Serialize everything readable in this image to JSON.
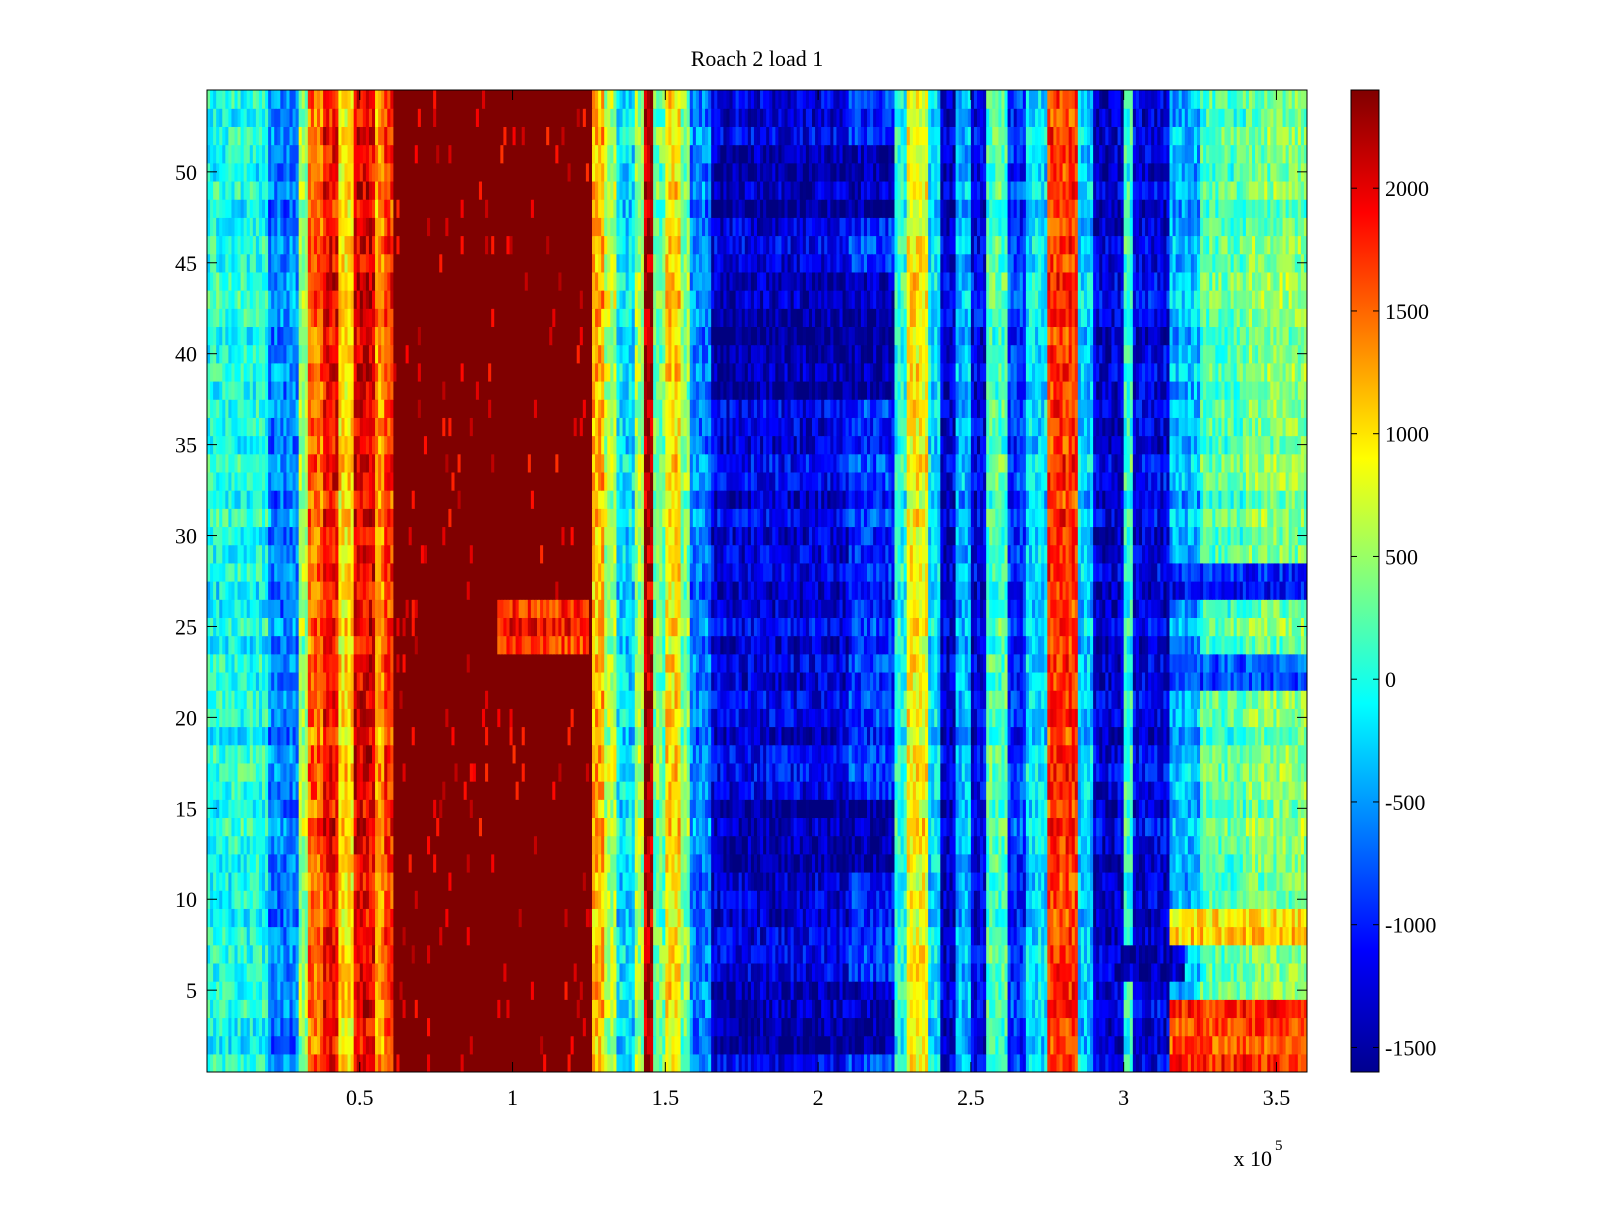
{
  "chart_data": {
    "type": "heatmap",
    "title": "Roach 2 load 1",
    "xlabel": "",
    "ylabel": "",
    "x_exponent_label": "x 10",
    "x_exponent_power": "5",
    "xlim": [
      0,
      360000
    ],
    "ylim": [
      0.5,
      54.5
    ],
    "n_rows": 54,
    "x_ticks": [
      {
        "value": 50000,
        "label": "0.5"
      },
      {
        "value": 100000,
        "label": "1"
      },
      {
        "value": 150000,
        "label": "1.5"
      },
      {
        "value": 200000,
        "label": "2"
      },
      {
        "value": 250000,
        "label": "2.5"
      },
      {
        "value": 300000,
        "label": "3"
      },
      {
        "value": 350000,
        "label": "3.5"
      }
    ],
    "y_ticks": [
      {
        "value": 5,
        "label": "5"
      },
      {
        "value": 10,
        "label": "10"
      },
      {
        "value": 15,
        "label": "15"
      },
      {
        "value": 20,
        "label": "20"
      },
      {
        "value": 25,
        "label": "25"
      },
      {
        "value": 30,
        "label": "30"
      },
      {
        "value": 35,
        "label": "35"
      },
      {
        "value": 40,
        "label": "40"
      },
      {
        "value": 45,
        "label": "45"
      },
      {
        "value": 50,
        "label": "50"
      }
    ],
    "colorbar": {
      "colormap": "jet",
      "clim": [
        -1600,
        2400
      ],
      "ticks": [
        {
          "value": -1500,
          "label": "-1500"
        },
        {
          "value": -1000,
          "label": "-1000"
        },
        {
          "value": -500,
          "label": "-500"
        },
        {
          "value": 0,
          "label": "0"
        },
        {
          "value": 500,
          "label": "500"
        },
        {
          "value": 1000,
          "label": "1000"
        },
        {
          "value": 1500,
          "label": "1500"
        },
        {
          "value": 2000,
          "label": "2000"
        }
      ]
    },
    "column_profile": [
      {
        "x0": 0,
        "x1": 20000,
        "value": 0
      },
      {
        "x0": 20000,
        "x1": 30000,
        "value": -600
      },
      {
        "x0": 30000,
        "x1": 33000,
        "value": 500
      },
      {
        "x0": 33000,
        "x1": 38000,
        "value": 1500
      },
      {
        "x0": 38000,
        "x1": 43000,
        "value": 1900
      },
      {
        "x0": 43000,
        "x1": 48000,
        "value": 1000
      },
      {
        "x0": 48000,
        "x1": 55000,
        "value": 2000
      },
      {
        "x0": 55000,
        "x1": 58000,
        "value": 1300
      },
      {
        "x0": 58000,
        "x1": 61000,
        "value": 1700
      },
      {
        "x0": 61000,
        "x1": 126000,
        "value": 2400
      },
      {
        "x0": 126000,
        "x1": 130000,
        "value": 1200
      },
      {
        "x0": 130000,
        "x1": 134000,
        "value": 600
      },
      {
        "x0": 134000,
        "x1": 140000,
        "value": -200
      },
      {
        "x0": 140000,
        "x1": 143000,
        "value": 500
      },
      {
        "x0": 143000,
        "x1": 146000,
        "value": 2200
      },
      {
        "x0": 146000,
        "x1": 150000,
        "value": 300
      },
      {
        "x0": 150000,
        "x1": 155000,
        "value": 1000
      },
      {
        "x0": 155000,
        "x1": 158000,
        "value": 400
      },
      {
        "x0": 158000,
        "x1": 165000,
        "value": -600
      },
      {
        "x0": 165000,
        "x1": 210000,
        "value": -1200
      },
      {
        "x0": 210000,
        "x1": 225000,
        "value": -900
      },
      {
        "x0": 225000,
        "x1": 229000,
        "value": 0
      },
      {
        "x0": 229000,
        "x1": 236000,
        "value": 900
      },
      {
        "x0": 236000,
        "x1": 240000,
        "value": -200
      },
      {
        "x0": 240000,
        "x1": 245000,
        "value": -1300
      },
      {
        "x0": 245000,
        "x1": 250000,
        "value": -400
      },
      {
        "x0": 250000,
        "x1": 255000,
        "value": -1200
      },
      {
        "x0": 255000,
        "x1": 262000,
        "value": 200
      },
      {
        "x0": 262000,
        "x1": 268000,
        "value": -900
      },
      {
        "x0": 268000,
        "x1": 275000,
        "value": -200
      },
      {
        "x0": 275000,
        "x1": 285000,
        "value": 1700
      },
      {
        "x0": 285000,
        "x1": 290000,
        "value": -300
      },
      {
        "x0": 290000,
        "x1": 300000,
        "value": -1300
      },
      {
        "x0": 300000,
        "x1": 303000,
        "value": 100
      },
      {
        "x0": 303000,
        "x1": 315000,
        "value": -1200
      },
      {
        "x0": 315000,
        "x1": 325000,
        "value": -400
      },
      {
        "x0": 325000,
        "x1": 340000,
        "value": 200
      },
      {
        "x0": 340000,
        "x1": 360000,
        "value": 400
      }
    ],
    "row_features": [
      {
        "rows": [
          1,
          4
        ],
        "x0": 315000,
        "x1": 360000,
        "value": 1700,
        "note": "warm band"
      },
      {
        "rows": [
          8,
          9
        ],
        "x0": 315000,
        "x1": 360000,
        "value": 1100,
        "note": "warm band"
      },
      {
        "rows": [
          6,
          7
        ],
        "x0": 300000,
        "x1": 320000,
        "value": -1400,
        "note": "cold patch"
      },
      {
        "rows": [
          22,
          23
        ],
        "x0": 315000,
        "x1": 360000,
        "value": -800,
        "note": "cold line"
      },
      {
        "rows": [
          27,
          28
        ],
        "x0": 315000,
        "x1": 360000,
        "value": -1000,
        "note": "cold line"
      },
      {
        "rows": [
          24,
          26
        ],
        "x0": 95000,
        "x1": 125000,
        "value": 1800,
        "note": "orange streaks"
      },
      {
        "rows": [
          38,
          44
        ],
        "x0": 165000,
        "x1": 225000,
        "value": -1500,
        "note": "dark patch"
      },
      {
        "rows": [
          12,
          15
        ],
        "x0": 165000,
        "x1": 225000,
        "value": -1500,
        "note": "dark patch"
      },
      {
        "rows": [
          2,
          5
        ],
        "x0": 165000,
        "x1": 225000,
        "value": -1450,
        "note": "dark patch"
      },
      {
        "rows": [
          48,
          51
        ],
        "x0": 165000,
        "x1": 225000,
        "value": -1400,
        "note": "dark patch"
      }
    ]
  }
}
